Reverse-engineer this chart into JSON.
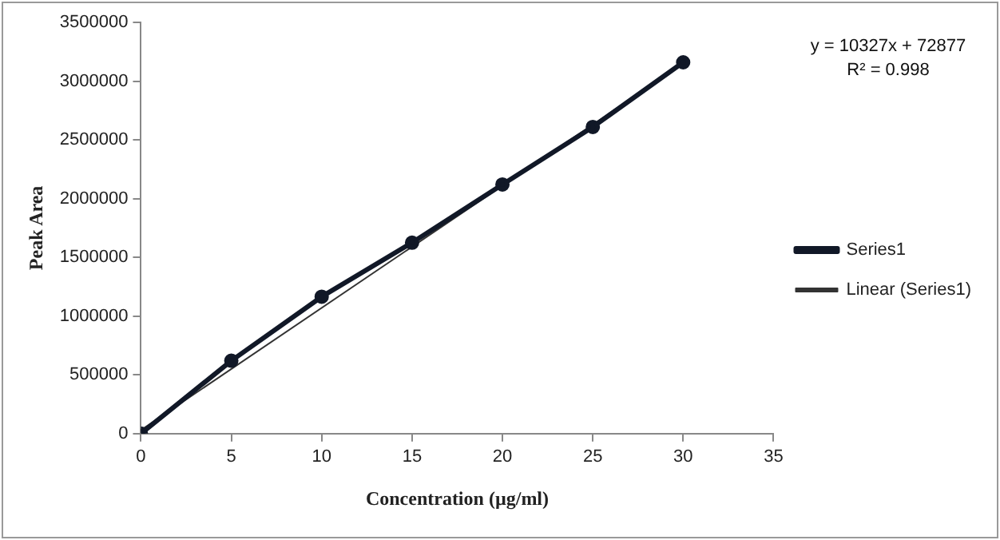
{
  "chart_data": {
    "type": "line",
    "xlabel": "Concentration (µg/ml)",
    "ylabel": "Peak Area",
    "x": [
      0,
      5,
      10,
      15,
      20,
      25,
      30
    ],
    "series": [
      {
        "name": "Series1",
        "color": "#111827",
        "marker": "circle",
        "values": [
          0,
          620000,
          1165000,
          1625000,
          2120000,
          2610000,
          3160000
        ]
      },
      {
        "name": "Linear (Series1)",
        "type": "line",
        "color": "#333333",
        "marker": "none",
        "x": [
          0,
          30
        ],
        "values": [
          30000,
          3150000
        ]
      }
    ],
    "xlim": [
      0,
      35
    ],
    "xticks": [
      0,
      5,
      10,
      15,
      20,
      25,
      30,
      35
    ],
    "ylim": [
      0,
      3500000
    ],
    "yticks": [
      0,
      500000,
      1000000,
      1500000,
      2000000,
      2500000,
      3000000,
      3500000
    ],
    "grid": false,
    "legend": "right",
    "annotations": [
      "y = 10327x + 72877",
      "R² = 0.998"
    ]
  }
}
